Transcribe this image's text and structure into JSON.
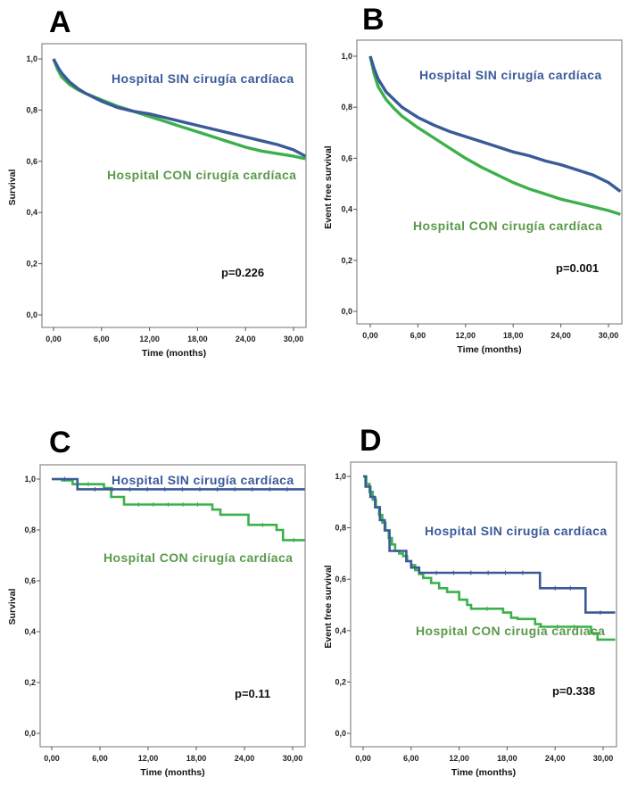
{
  "colors": {
    "sin": "#3a5a98",
    "con": "#3cb04a",
    "sin_label": "#3a5a98",
    "con_label": "#5a9a4a"
  },
  "chart_data": [
    {
      "id": "A",
      "type": "line",
      "letter": "A",
      "title": "",
      "xlabel": "Time (months)",
      "ylabel": "Survival",
      "xlim": [
        -2,
        31.5
      ],
      "ylim": [
        -0.05,
        1.05
      ],
      "xticks": [
        0,
        6,
        12,
        18,
        24,
        30
      ],
      "xtick_labels": [
        "0,00",
        "6,00",
        "12,00",
        "18,00",
        "24,00",
        "30,00"
      ],
      "yticks": [
        0,
        0.2,
        0.4,
        0.6,
        0.8,
        1.0
      ],
      "ytick_labels": [
        "0,0",
        "0,2",
        "0,4",
        "0,6",
        "0,8",
        "1,0"
      ],
      "step": false,
      "pvalue": "p=0.226",
      "series": [
        {
          "name": "Hospital SIN cirugía cardíaca",
          "key": "sin",
          "x": [
            0,
            0.5,
            1,
            2,
            3,
            4,
            6,
            8,
            10,
            12,
            14,
            16,
            18,
            20,
            22,
            24,
            26,
            28,
            30,
            31.5
          ],
          "y": [
            1.0,
            0.97,
            0.945,
            0.91,
            0.885,
            0.865,
            0.835,
            0.81,
            0.795,
            0.785,
            0.77,
            0.755,
            0.74,
            0.725,
            0.71,
            0.695,
            0.68,
            0.665,
            0.645,
            0.62
          ]
        },
        {
          "name": "Hospital CON cirugía cardíaca",
          "key": "con",
          "x": [
            0,
            0.5,
            1,
            2,
            3,
            4,
            6,
            8,
            10,
            12,
            14,
            16,
            18,
            20,
            22,
            24,
            26,
            28,
            30,
            31.5
          ],
          "y": [
            1.0,
            0.96,
            0.93,
            0.9,
            0.88,
            0.865,
            0.84,
            0.815,
            0.795,
            0.775,
            0.755,
            0.735,
            0.715,
            0.695,
            0.675,
            0.655,
            0.64,
            0.63,
            0.62,
            0.61
          ]
        }
      ],
      "labels": {
        "sin": "Hospital SIN cirugía cardíaca",
        "con": "Hospital CON cirugía cardíaca"
      }
    },
    {
      "id": "B",
      "type": "line",
      "letter": "B",
      "title": "",
      "xlabel": "Time (months)",
      "ylabel": "Event free survival",
      "xlim": [
        -2,
        31.5
      ],
      "ylim": [
        -0.05,
        1.05
      ],
      "xticks": [
        0,
        6,
        12,
        18,
        24,
        30
      ],
      "xtick_labels": [
        "0,00",
        "6,00",
        "12,00",
        "18,00",
        "24,00",
        "30,00"
      ],
      "yticks": [
        0,
        0.2,
        0.4,
        0.6,
        0.8,
        1.0
      ],
      "ytick_labels": [
        "0,0",
        "0,2",
        "0,4",
        "0,6",
        "0,8",
        "1,0"
      ],
      "step": false,
      "pvalue": "p=0.001",
      "series": [
        {
          "name": "Hospital SIN cirugía cardíaca",
          "key": "sin",
          "x": [
            0,
            0.5,
            1,
            2,
            3,
            4,
            6,
            8,
            10,
            12,
            14,
            16,
            18,
            20,
            22,
            24,
            26,
            28,
            30,
            31.5
          ],
          "y": [
            1.0,
            0.95,
            0.91,
            0.86,
            0.83,
            0.8,
            0.76,
            0.73,
            0.705,
            0.685,
            0.665,
            0.645,
            0.625,
            0.61,
            0.59,
            0.575,
            0.555,
            0.535,
            0.505,
            0.47
          ]
        },
        {
          "name": "Hospital CON cirugía cardíaca",
          "key": "con",
          "x": [
            0,
            0.5,
            1,
            2,
            3,
            4,
            6,
            8,
            10,
            12,
            14,
            16,
            18,
            20,
            22,
            24,
            26,
            28,
            30,
            31.5
          ],
          "y": [
            1.0,
            0.93,
            0.88,
            0.83,
            0.795,
            0.765,
            0.72,
            0.68,
            0.64,
            0.6,
            0.565,
            0.535,
            0.505,
            0.48,
            0.46,
            0.44,
            0.425,
            0.41,
            0.395,
            0.38
          ]
        }
      ],
      "labels": {
        "sin": "Hospital SIN cirugía cardíaca",
        "con": "Hospital CON cirugía cardíaca"
      }
    },
    {
      "id": "C",
      "type": "line",
      "letter": "C",
      "title": "",
      "xlabel": "Time (months)",
      "ylabel": "Survival",
      "xlim": [
        -2,
        31.5
      ],
      "ylim": [
        -0.05,
        1.05
      ],
      "xticks": [
        0,
        6,
        12,
        18,
        24,
        30
      ],
      "xtick_labels": [
        "0,00",
        "6,00",
        "12,00",
        "18,00",
        "24,00",
        "30,00"
      ],
      "yticks": [
        0,
        0.2,
        0.4,
        0.6,
        0.8,
        1.0
      ],
      "ytick_labels": [
        "0,0",
        "0,2",
        "0,4",
        "0,6",
        "0,8",
        "1,0"
      ],
      "step": true,
      "pvalue": "p=0.11",
      "series": [
        {
          "name": "Hospital SIN cirugía cardíaca",
          "key": "sin",
          "x": [
            0,
            3.2,
            31.5
          ],
          "y": [
            1.0,
            0.96,
            0.96
          ]
        },
        {
          "name": "Hospital CON cirugía cardíaca",
          "key": "con",
          "x": [
            0,
            1.3,
            2.6,
            6.5,
            7.4,
            9.0,
            20.0,
            21.0,
            22.0,
            24.5,
            28.0,
            28.8,
            31.5
          ],
          "y": [
            1.0,
            0.995,
            0.98,
            0.965,
            0.93,
            0.9,
            0.88,
            0.86,
            0.86,
            0.82,
            0.8,
            0.76,
            0.76
          ]
        }
      ],
      "labels": {
        "sin": "Hospital SIN cirugía cardíaca",
        "con": "Hospital CON cirugía cardíaca"
      }
    },
    {
      "id": "D",
      "type": "line",
      "letter": "D",
      "title": "",
      "xlabel": "Time (months)",
      "ylabel": "Event free survival",
      "xlim": [
        -2,
        31.5
      ],
      "ylim": [
        -0.05,
        1.05
      ],
      "xticks": [
        0,
        6,
        12,
        18,
        24,
        30
      ],
      "xtick_labels": [
        "0,00",
        "6,00",
        "12,00",
        "18,00",
        "24,00",
        "30,00"
      ],
      "yticks": [
        0,
        0.2,
        0.4,
        0.6,
        0.8,
        1.0
      ],
      "ytick_labels": [
        "0,0",
        "0,2",
        "0,4",
        "0,6",
        "0,8",
        "1,0"
      ],
      "step": true,
      "pvalue": "p=0.338",
      "series": [
        {
          "name": "Hospital SIN cirugía cardíaca",
          "key": "sin",
          "x": [
            0,
            0.3,
            0.9,
            1.5,
            2.1,
            2.7,
            3.3,
            4.8,
            5.4,
            6.0,
            7.0,
            22.1,
            27.8,
            31.5
          ],
          "y": [
            1.0,
            0.96,
            0.92,
            0.88,
            0.83,
            0.79,
            0.71,
            0.71,
            0.67,
            0.645,
            0.625,
            0.565,
            0.47,
            0.47
          ]
        },
        {
          "name": "Hospital CON cirugía cardíaca",
          "key": "con",
          "x": [
            0,
            0.4,
            0.8,
            1.2,
            1.6,
            2.0,
            2.4,
            2.8,
            3.2,
            3.6,
            4.0,
            4.5,
            5.0,
            5.5,
            6.0,
            6.5,
            7.0,
            7.5,
            8.5,
            9.5,
            10.5,
            12.0,
            13.0,
            13.5,
            17.5,
            18.5,
            19.3,
            21.5,
            22.2,
            28.5,
            29.3,
            31.5
          ],
          "y": [
            1.0,
            0.97,
            0.94,
            0.91,
            0.88,
            0.85,
            0.82,
            0.79,
            0.76,
            0.735,
            0.71,
            0.7,
            0.69,
            0.67,
            0.655,
            0.635,
            0.62,
            0.605,
            0.585,
            0.565,
            0.55,
            0.52,
            0.5,
            0.485,
            0.47,
            0.45,
            0.445,
            0.425,
            0.415,
            0.39,
            0.365,
            0.365
          ]
        }
      ],
      "labels": {
        "sin": "Hospital SIN cirugía cardíaca",
        "con": "Hospital CON cirugía cardíaca"
      }
    }
  ]
}
